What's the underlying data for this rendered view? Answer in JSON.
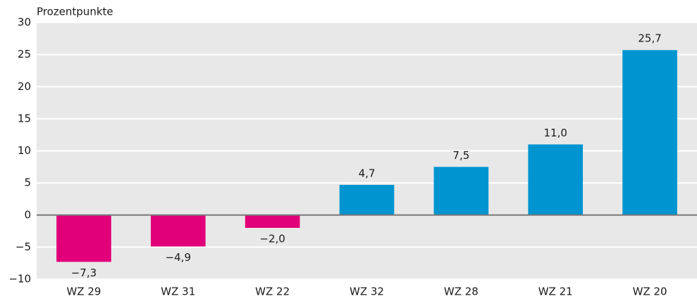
{
  "chart_data": {
    "type": "bar",
    "ylabel": "Prozentpunkte",
    "categories": [
      "WZ 29",
      "WZ 31",
      "WZ 22",
      "WZ 32",
      "WZ 28",
      "WZ 21",
      "WZ 20"
    ],
    "values": [
      -7.3,
      -4.9,
      -2.0,
      4.7,
      7.5,
      11.0,
      25.7
    ],
    "value_labels": [
      "−7,3",
      "−4,9",
      "−2,0",
      "4,7",
      "7,5",
      "11,0",
      "25,7"
    ],
    "colors": [
      "#e2007a",
      "#e2007a",
      "#e2007a",
      "#0095d1",
      "#0095d1",
      "#0095d1",
      "#0095d1"
    ],
    "ylim": [
      -10,
      30
    ],
    "yticks": [
      {
        "value": -10,
        "label": "−10"
      },
      {
        "value": -5,
        "label": "−5"
      },
      0,
      5,
      10,
      15,
      20,
      25,
      30
    ],
    "grid": true
  }
}
